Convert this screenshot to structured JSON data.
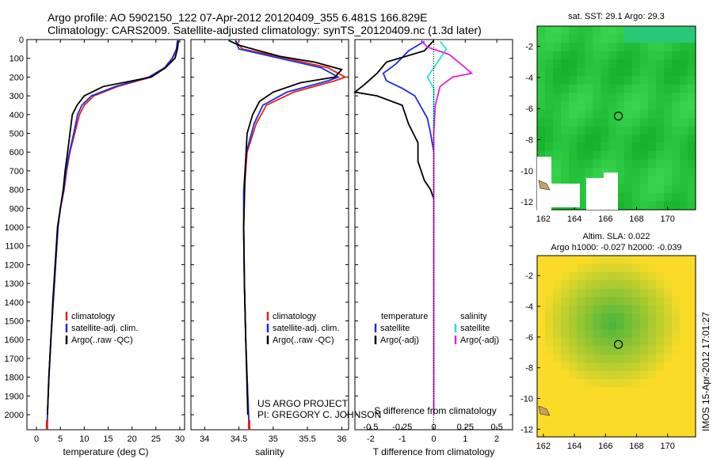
{
  "header": {
    "line1": "Argo profile: AO 5902150_122 07-Apr-2012 20120409_355 6.481S 166.829E",
    "line2": "Climatology: CARS2009. Satellite-adjusted climatology: synTS_20120409.nc (1.3d later)"
  },
  "credits": {
    "project": "US ARGO PROJECT",
    "pi": "PI: GREGORY C. JOHNSON"
  },
  "sidebar_stamp": "IMOS 15-Apr-2012 17:01:27",
  "colors": {
    "climatology": "#e02020",
    "satellite": "#1a2ee0",
    "argo": "#000000",
    "sal_satellite": "#20e0e0",
    "sal_argo": "#e020e0"
  },
  "chart_data": [
    {
      "type": "line",
      "name": "temperature-profile",
      "xlabel": "temperature (deg C)",
      "xlim": [
        -2,
        31
      ],
      "xticks": [
        0,
        5,
        10,
        15,
        20,
        25,
        30
      ],
      "ylim": [
        2080,
        0
      ],
      "yticks": [
        0,
        100,
        200,
        300,
        400,
        500,
        600,
        700,
        800,
        900,
        1000,
        1100,
        1200,
        1300,
        1400,
        1500,
        1600,
        1700,
        1800,
        1900,
        2000
      ],
      "legend": [
        "climatology",
        "satellite-adj. clim.",
        "Argo(..raw -QC)"
      ],
      "series": [
        {
          "name": "climatology",
          "color": "#e02020",
          "points": [
            [
              29.6,
              5
            ],
            [
              29.4,
              50
            ],
            [
              28.5,
              100
            ],
            [
              27,
              150
            ],
            [
              24,
              200
            ],
            [
              17,
              250
            ],
            [
              12,
              300
            ],
            [
              10,
              350
            ],
            [
              9,
              400
            ],
            [
              8,
              500
            ],
            [
              7,
              600
            ],
            [
              6.3,
              700
            ],
            [
              5.8,
              800
            ],
            [
              5,
              900
            ],
            [
              4.5,
              1000
            ],
            [
              4,
              1200
            ],
            [
              3.5,
              1400
            ],
            [
              3,
              1600
            ],
            [
              2.6,
              1800
            ],
            [
              2.3,
              2000
            ],
            [
              2.2,
              2080
            ]
          ]
        },
        {
          "name": "satellite-adj. clim.",
          "color": "#1a2ee0",
          "points": [
            [
              29.5,
              5
            ],
            [
              29.3,
              50
            ],
            [
              28.4,
              100
            ],
            [
              26.8,
              150
            ],
            [
              23.5,
              200
            ],
            [
              16.5,
              250
            ],
            [
              11.5,
              300
            ],
            [
              9.5,
              350
            ],
            [
              8.6,
              400
            ],
            [
              7.8,
              500
            ],
            [
              6.9,
              600
            ],
            [
              6.2,
              700
            ],
            [
              5.7,
              800
            ],
            [
              5,
              900
            ],
            [
              4.5,
              1000
            ],
            [
              4,
              1200
            ],
            [
              3.5,
              1400
            ],
            [
              3,
              1600
            ],
            [
              2.6,
              1800
            ],
            [
              2.3,
              2000
            ],
            [
              2.2,
              2080
            ]
          ]
        },
        {
          "name": "Argo(..raw -QC)",
          "color": "#000000",
          "points": [
            [
              29.7,
              5
            ],
            [
              29.5,
              50
            ],
            [
              29,
              100
            ],
            [
              27,
              150
            ],
            [
              24,
              200
            ],
            [
              14,
              250
            ],
            [
              10,
              300
            ],
            [
              8.5,
              350
            ],
            [
              7.5,
              400
            ],
            [
              7,
              500
            ],
            [
              6.5,
              600
            ],
            [
              6,
              700
            ],
            [
              5.6,
              800
            ],
            [
              5,
              900
            ],
            [
              4.4,
              1000
            ],
            [
              3.9,
              1200
            ],
            [
              3.4,
              1400
            ],
            [
              3,
              1600
            ],
            [
              2.6,
              1800
            ],
            [
              2.3,
              2000
            ]
          ]
        }
      ]
    },
    {
      "type": "line",
      "name": "salinity-profile",
      "xlabel": "salinity",
      "xlim": [
        33.8,
        36.1
      ],
      "xticks": [
        34,
        34.5,
        35,
        35.5,
        36
      ],
      "xticklabels": [
        "34",
        "34.5",
        "35",
        "35.5",
        "36"
      ],
      "ylim": [
        2080,
        0
      ],
      "legend": [
        "climatology",
        "satellite-adj. clim.",
        "Argo(..raw -QC)"
      ],
      "series": [
        {
          "name": "climatology",
          "color": "#e02020",
          "points": [
            [
              34.45,
              5
            ],
            [
              34.55,
              50
            ],
            [
              35.2,
              100
            ],
            [
              35.8,
              150
            ],
            [
              36.05,
              200
            ],
            [
              35.9,
              220
            ],
            [
              35.3,
              280
            ],
            [
              34.9,
              350
            ],
            [
              34.75,
              450
            ],
            [
              34.62,
              600
            ],
            [
              34.58,
              800
            ],
            [
              34.57,
              1000
            ],
            [
              34.58,
              1300
            ],
            [
              34.6,
              1600
            ],
            [
              34.63,
              1900
            ],
            [
              34.65,
              2080
            ]
          ]
        },
        {
          "name": "satellite-adj. clim.",
          "color": "#1a2ee0",
          "points": [
            [
              34.45,
              5
            ],
            [
              34.5,
              50
            ],
            [
              35.1,
              100
            ],
            [
              35.7,
              150
            ],
            [
              35.95,
              200
            ],
            [
              35.8,
              220
            ],
            [
              35.2,
              280
            ],
            [
              34.85,
              350
            ],
            [
              34.72,
              450
            ],
            [
              34.61,
              600
            ],
            [
              34.57,
              800
            ],
            [
              34.57,
              1000
            ],
            [
              34.58,
              1300
            ],
            [
              34.6,
              1600
            ],
            [
              34.63,
              1900
            ],
            [
              34.65,
              2080
            ]
          ]
        },
        {
          "name": "Argo(..raw -QC)",
          "color": "#000000",
          "points": [
            [
              34.35,
              5
            ],
            [
              34.5,
              30
            ],
            [
              34.8,
              60
            ],
            [
              35.1,
              90
            ],
            [
              35.6,
              120
            ],
            [
              36.0,
              160
            ],
            [
              35.9,
              200
            ],
            [
              35.4,
              230
            ],
            [
              35.0,
              280
            ],
            [
              34.8,
              330
            ],
            [
              34.7,
              400
            ],
            [
              34.62,
              500
            ],
            [
              34.59,
              700
            ],
            [
              34.57,
              1000
            ],
            [
              34.58,
              1300
            ],
            [
              34.6,
              1600
            ],
            [
              34.63,
              2000
            ]
          ]
        }
      ]
    },
    {
      "type": "line",
      "name": "difference-profile",
      "xlabel": "T difference from climatology",
      "xlabel2": "S difference from climatology",
      "xlim": [
        -2.5,
        2.5
      ],
      "xticks": [
        -2,
        -1,
        0,
        1,
        2
      ],
      "xticklabels": [
        "-2",
        "-1",
        "0",
        "1",
        "2"
      ],
      "xticks2": [
        -0.5,
        -0.25,
        0,
        0.25,
        0.5
      ],
      "xticklabels2": [
        "-0.5",
        "-0.25",
        "0",
        "0.25",
        "0.5"
      ],
      "ylim": [
        2080,
        0
      ],
      "legend_temperature": [
        "temperature",
        "satellite",
        "Argo(-adj)"
      ],
      "legend_salinity": [
        "salinity",
        "satellite",
        "Argo(-adj)"
      ],
      "series": [
        {
          "name": "temperature satellite",
          "color": "#1a2ee0",
          "points": [
            [
              -0.3,
              10
            ],
            [
              -0.8,
              60
            ],
            [
              -1.2,
              130
            ],
            [
              -1.6,
              180
            ],
            [
              -1.5,
              220
            ],
            [
              -1,
              260
            ],
            [
              -0.6,
              300
            ],
            [
              -0.4,
              360
            ],
            [
              -0.2,
              420
            ],
            [
              -0.1,
              500
            ],
            [
              0,
              600
            ],
            [
              0,
              2000
            ]
          ]
        },
        {
          "name": "temperature Argo(-adj)",
          "color": "#000000",
          "points": [
            [
              0,
              5
            ],
            [
              -0.3,
              60
            ],
            [
              -1.5,
              120
            ],
            [
              -1.8,
              180
            ],
            [
              -2.2,
              240
            ],
            [
              -2.5,
              280
            ],
            [
              -1.8,
              300
            ],
            [
              -1,
              350
            ],
            [
              -0.8,
              450
            ],
            [
              -0.5,
              550
            ],
            [
              -0.5,
              650
            ],
            [
              -0.3,
              750
            ],
            [
              -0.1,
              800
            ],
            [
              0,
              850
            ],
            [
              0,
              2000
            ]
          ]
        },
        {
          "name": "salinity satellite",
          "color": "#20e0e0",
          "points": [
            [
              0.2,
              10
            ],
            [
              0.4,
              50
            ],
            [
              0.2,
              100
            ],
            [
              0,
              150
            ],
            [
              -0.2,
              200
            ],
            [
              0,
              260
            ],
            [
              0,
              2000
            ]
          ]
        },
        {
          "name": "salinity Argo(-adj)",
          "color": "#e020e0",
          "points": [
            [
              -0.4,
              5
            ],
            [
              -0.2,
              40
            ],
            [
              0.5,
              80
            ],
            [
              1,
              150
            ],
            [
              1.2,
              180
            ],
            [
              0.6,
              200
            ],
            [
              0.2,
              250
            ],
            [
              0.05,
              350
            ],
            [
              0,
              500
            ],
            [
              0,
              2000
            ]
          ]
        }
      ]
    },
    {
      "type": "heatmap",
      "name": "sst-map",
      "title": "sat. SST: 29.1  Argo: 29.3",
      "xlim": [
        161.6,
        171.8
      ],
      "ylim": [
        -12.5,
        -0.7
      ],
      "xticks": [
        162,
        164,
        166,
        168,
        170
      ],
      "yticks": [
        -2,
        -4,
        -6,
        -8,
        -10,
        -12
      ],
      "marker": [
        166.829,
        -6.481
      ]
    },
    {
      "type": "heatmap",
      "name": "sla-map",
      "title1": "Altim. SLA: 0.022",
      "title2": "Argo h1000: -0.027 h2000: -0.039",
      "xlim": [
        161.6,
        171.8
      ],
      "ylim": [
        -12.5,
        -0.7
      ],
      "xticks": [
        162,
        164,
        166,
        168,
        170
      ],
      "yticks": [
        -2,
        -4,
        -6,
        -8,
        -10,
        -12
      ],
      "marker": [
        166.829,
        -6.481
      ]
    }
  ]
}
